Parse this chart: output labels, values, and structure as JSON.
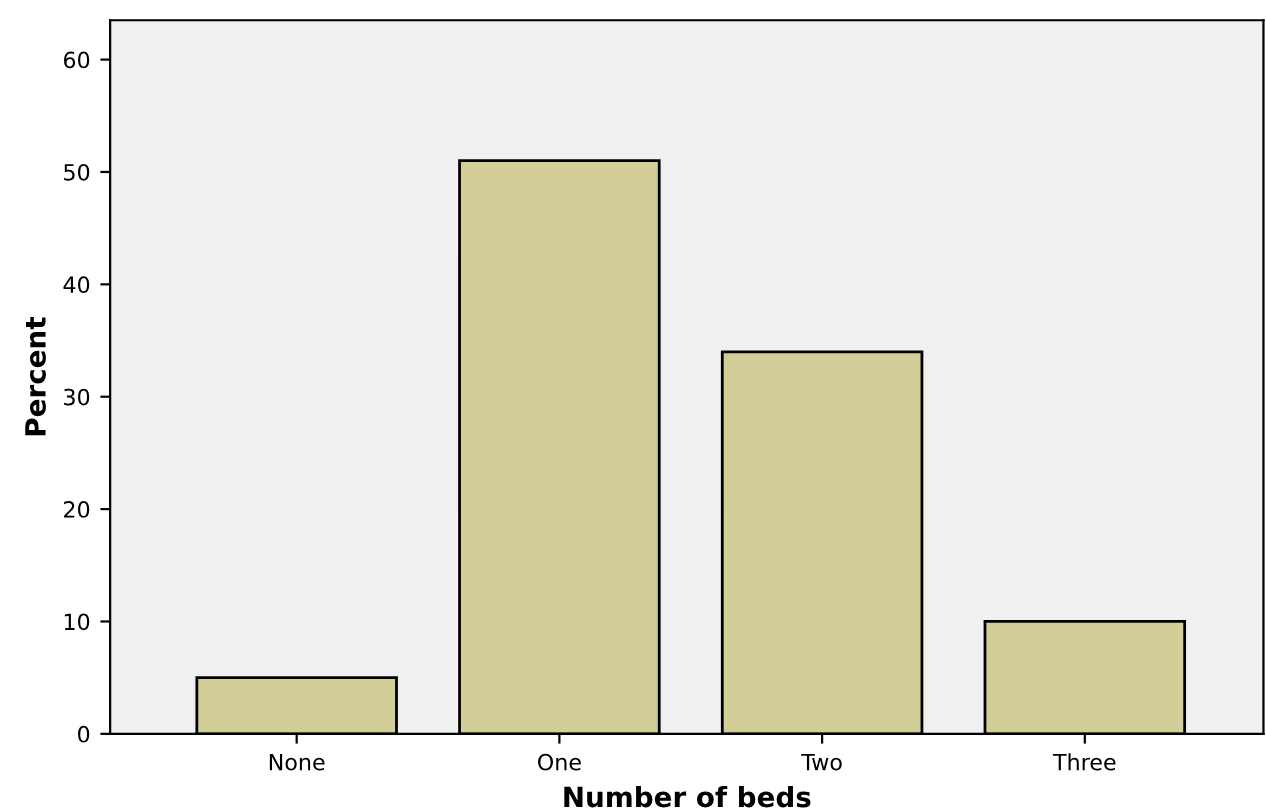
{
  "chart_data": {
    "type": "bar",
    "xlabel": "Number of beds",
    "ylabel": "Percent",
    "categories": [
      "None",
      "One",
      "Two",
      "Three"
    ],
    "values": [
      5,
      51,
      34,
      10
    ],
    "color": "#d3ce97",
    "ylim": [
      0,
      63.5
    ],
    "yticks": [
      0,
      10,
      20,
      30,
      40,
      50,
      60
    ],
    "grid": false
  }
}
